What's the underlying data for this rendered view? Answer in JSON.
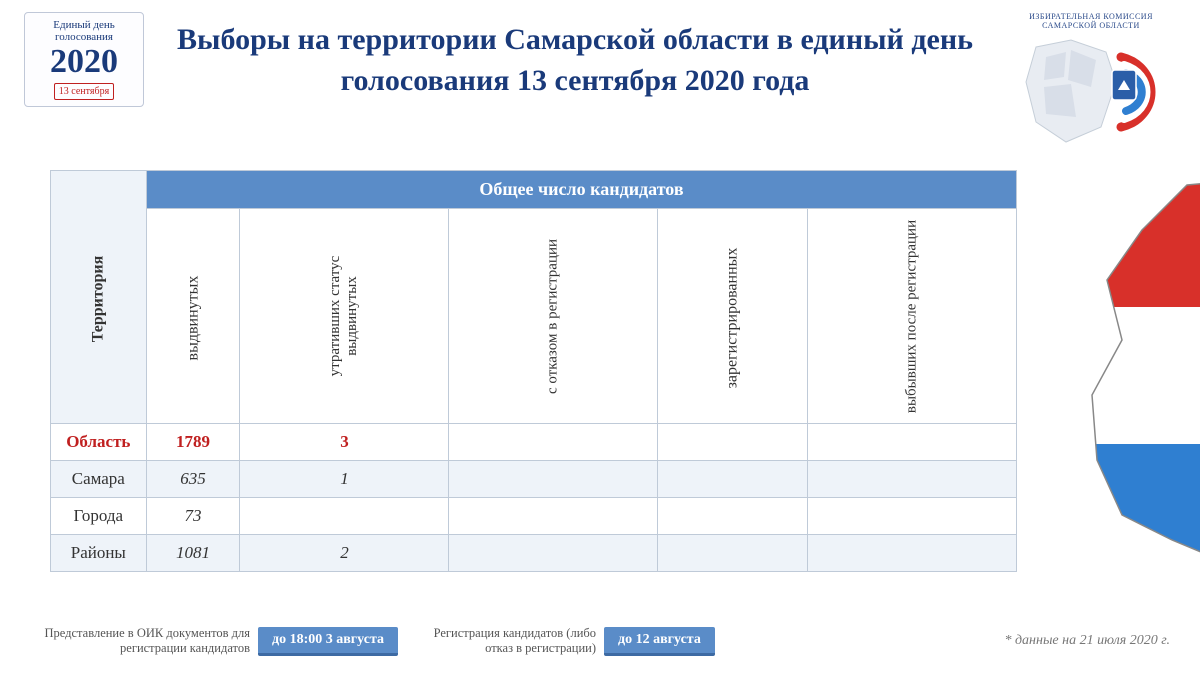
{
  "logo_left": {
    "line1": "Единый день голосования",
    "year": "2020",
    "date": "13 сентября"
  },
  "title": "Выборы на территории Самарской области в единый день голосования 13 сентября 2020 года",
  "logo_right_caption": "ИЗБИРАТЕЛЬНАЯ КОМИССИЯ САМАРСКОЙ ОБЛАСТИ",
  "table": {
    "header_group": "Общее число кандидатов",
    "columns": [
      "Территория",
      "выдвинутых",
      "утративших статус выдвинутых",
      "с отказом в регистрации",
      "зарегистрированных",
      "выбывших после регистрации"
    ],
    "rows": [
      {
        "label": "Область",
        "c1": "1789",
        "c2": "3",
        "c3": "",
        "c4": "",
        "c5": "",
        "total": true
      },
      {
        "label": "Самара",
        "c1": "635",
        "c2": "1",
        "c3": "",
        "c4": "",
        "c5": ""
      },
      {
        "label": "Города",
        "c1": "73",
        "c2": "",
        "c3": "",
        "c4": "",
        "c5": ""
      },
      {
        "label": "Районы",
        "c1": "1081",
        "c2": "2",
        "c3": "",
        "c4": "",
        "c5": ""
      }
    ]
  },
  "colors": {
    "header_bg": "#5a8cc8",
    "header_text": "#ffffff",
    "border": "#bfcad8",
    "stripe": "#eef3f9",
    "title": "#1a3a7a",
    "total_row": "#c02020",
    "map_red": "#d8302a",
    "map_white": "#ffffff",
    "map_blue": "#2f7fd1",
    "crest_blue": "#2a5ea8",
    "crest_gold": "#e5b53a"
  },
  "footer": {
    "item1_label": "Представление в ОИК документов для регистрации кандидатов",
    "item1_badge": "до 18:00 3 августа",
    "item2_label": "Регистрация кандидатов (либо отказ в регистрации)",
    "item2_badge": "до 12 августа",
    "note": "* данные на 21 июля 2020 г."
  }
}
